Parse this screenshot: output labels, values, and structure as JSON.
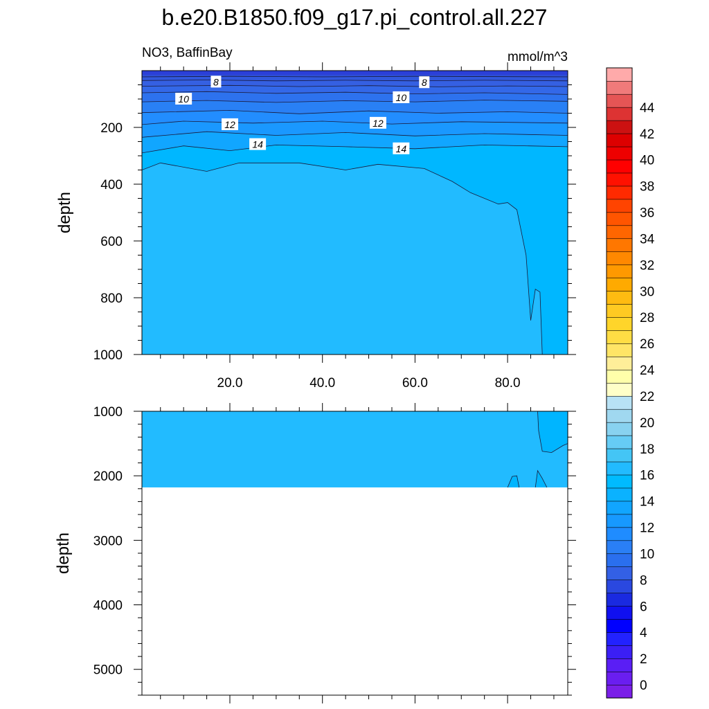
{
  "chart_data": [
    {
      "type": "contour",
      "title": "b.e20.B1850.f09_g17.pi_control.all.227",
      "subtitle_left": "NO3, BaffinBay",
      "subtitle_right": "mmol/m^3",
      "ylabel": "depth",
      "xlim": [
        1,
        93
      ],
      "ylim": [
        0,
        1000
      ],
      "x_ticks": [
        20,
        40,
        60,
        80
      ],
      "x_tick_labels": [
        "20.0",
        "40.0",
        "60.0",
        "80.0"
      ],
      "y_ticks": [
        200,
        400,
        600,
        800,
        1000
      ],
      "y_tick_labels": [
        "200",
        "400",
        "600",
        "800",
        "1000"
      ],
      "contour_labels": [
        {
          "text": "8",
          "x": 17,
          "y": 40
        },
        {
          "text": "8",
          "x": 62,
          "y": 42
        },
        {
          "text": "10",
          "x": 10,
          "y": 100
        },
        {
          "text": "10",
          "x": 57,
          "y": 95
        },
        {
          "text": "12",
          "x": 20,
          "y": 190
        },
        {
          "text": "12",
          "x": 52,
          "y": 185
        },
        {
          "text": "14",
          "x": 26,
          "y": 260
        },
        {
          "text": "14",
          "x": 57,
          "y": 275
        }
      ],
      "contour_lines": [
        {
          "level": 6,
          "points": [
            [
              1,
              22
            ],
            [
              20,
              20
            ],
            [
              40,
              22
            ],
            [
              60,
              20
            ],
            [
              93,
              22
            ]
          ]
        },
        {
          "level": 7,
          "points": [
            [
              1,
              35
            ],
            [
              15,
              33
            ],
            [
              30,
              36
            ],
            [
              45,
              34
            ],
            [
              60,
              36
            ],
            [
              75,
              34
            ],
            [
              93,
              36
            ]
          ]
        },
        {
          "level": 8,
          "points": [
            [
              1,
              55
            ],
            [
              20,
              52
            ],
            [
              35,
              56
            ],
            [
              50,
              53
            ],
            [
              65,
              57
            ],
            [
              80,
              54
            ],
            [
              93,
              56
            ]
          ]
        },
        {
          "level": 9,
          "points": [
            [
              1,
              78
            ],
            [
              15,
              74
            ],
            [
              30,
              80
            ],
            [
              45,
              76
            ],
            [
              60,
              82
            ],
            [
              75,
              78
            ],
            [
              93,
              84
            ]
          ]
        },
        {
          "level": 10,
          "points": [
            [
              1,
              110
            ],
            [
              15,
              105
            ],
            [
              30,
              112
            ],
            [
              45,
              106
            ],
            [
              60,
              110
            ],
            [
              75,
              104
            ],
            [
              93,
              108
            ]
          ]
        },
        {
          "level": 11,
          "points": [
            [
              1,
              148
            ],
            [
              20,
              140
            ],
            [
              35,
              152
            ],
            [
              50,
              142
            ],
            [
              65,
              150
            ],
            [
              80,
              145
            ],
            [
              93,
              150
            ]
          ]
        },
        {
          "level": 12,
          "points": [
            [
              1,
              190
            ],
            [
              10,
              178
            ],
            [
              25,
              185
            ],
            [
              40,
              178
            ],
            [
              55,
              188
            ],
            [
              70,
              180
            ],
            [
              93,
              185
            ]
          ]
        },
        {
          "level": 13,
          "points": [
            [
              1,
              235
            ],
            [
              15,
              215
            ],
            [
              30,
              228
            ],
            [
              45,
              218
            ],
            [
              60,
              230
            ],
            [
              75,
              222
            ],
            [
              93,
              228
            ]
          ]
        },
        {
          "level": 14,
          "points": [
            [
              1,
              290
            ],
            [
              10,
              265
            ],
            [
              20,
              282
            ],
            [
              30,
              262
            ],
            [
              45,
              268
            ],
            [
              60,
              275
            ],
            [
              75,
              262
            ],
            [
              93,
              268
            ]
          ]
        },
        {
          "level": 15,
          "points": [
            [
              1,
              350
            ],
            [
              5,
              325
            ],
            [
              15,
              355
            ],
            [
              22,
              325
            ],
            [
              35,
              325
            ],
            [
              45,
              350
            ],
            [
              52,
              330
            ],
            [
              62,
              345
            ],
            [
              68,
              390
            ],
            [
              72,
              430
            ],
            [
              78,
              470
            ],
            [
              80,
              465
            ],
            [
              82,
              490
            ],
            [
              84,
              650
            ],
            [
              85,
              880
            ],
            [
              86,
              770
            ],
            [
              87,
              780
            ],
            [
              87.5,
              1000
            ]
          ]
        }
      ],
      "fill_colors": {
        "shallow": "#2b5fe6",
        "mid": "#1f99ff",
        "deep": "#22bbff"
      }
    },
    {
      "type": "contour",
      "ylabel": "depth",
      "xlim": [
        1,
        93
      ],
      "ylim": [
        1000,
        5400
      ],
      "data_bottom": 2180,
      "y_ticks": [
        1000,
        2000,
        3000,
        4000,
        5000
      ],
      "y_tick_labels": [
        "1000",
        "2000",
        "3000",
        "4000",
        "5000"
      ],
      "fill_colors": {
        "deep": "#22bbff",
        "region14": "#00b5ff"
      }
    }
  ],
  "colorbar": {
    "labels": [
      "0",
      "2",
      "4",
      "6",
      "8",
      "10",
      "12",
      "14",
      "16",
      "18",
      "20",
      "22",
      "24",
      "26",
      "28",
      "30",
      "32",
      "34",
      "36",
      "38",
      "40",
      "42",
      "44"
    ],
    "colors": [
      "#7a1fe8",
      "#6a1ef0",
      "#5a1ef5",
      "#3b1ff5",
      "#2222ff",
      "#0000ff",
      "#1010f0",
      "#1a2ae0",
      "#2a48e0",
      "#3360e5",
      "#2a6fee",
      "#2a7ff5",
      "#1f8cff",
      "#1799ff",
      "#11a5ff",
      "#0bb2ff",
      "#00bbff",
      "#22bbff",
      "#44c5f5",
      "#66ccf5",
      "#88d2f0",
      "#a0d8f0",
      "#b8e2f5",
      "#ffffc8",
      "#ffffaa",
      "#ffee99",
      "#ffe566",
      "#ffdd44",
      "#ffd52a",
      "#ffca22",
      "#ffbb11",
      "#ffaa00",
      "#ff9900",
      "#ff8800",
      "#ff7700",
      "#ff6600",
      "#ff5500",
      "#ff4400",
      "#ff2a00",
      "#ff1100",
      "#ff0000",
      "#ee0000",
      "#dd0000",
      "#cc1111",
      "#dd3333",
      "#e55555",
      "#f07a7a",
      "#ffaaaa"
    ]
  }
}
